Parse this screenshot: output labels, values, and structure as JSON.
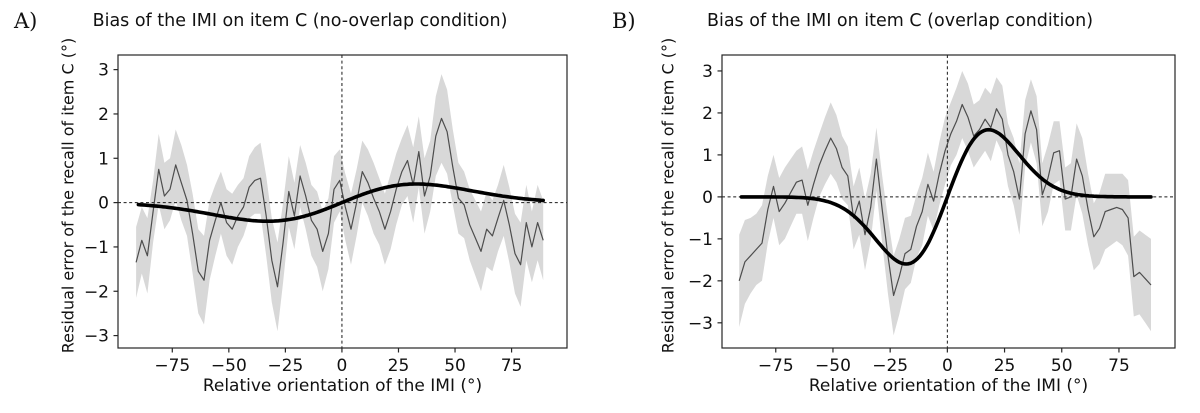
{
  "figure": {
    "background_color": "#ffffff",
    "description": "Two-panel line figure showing bias of the IMI on item C"
  },
  "chart_data": [
    {
      "type": "line",
      "panel_label": "A)",
      "title": "Bias of the IMI on item C (no-overlap condition)",
      "xlabel": "Relative orientation of the IMI (°)",
      "ylabel": "Residual error of the recall of item C (°)",
      "xlim": [
        -99,
        99.5
      ],
      "ylim": [
        -3.28,
        3.33
      ],
      "x_ticks": [
        -75,
        -50,
        -25,
        0,
        25,
        50,
        75
      ],
      "x_tick_labels": [
        "−75",
        "−50",
        "−25",
        "0",
        "25",
        "50",
        "75"
      ],
      "y_ticks": [
        3,
        2,
        1,
        0,
        -1,
        -2,
        -3
      ],
      "y_tick_labels": [
        "3",
        "2",
        "1",
        "0",
        "−1",
        "−2",
        "−3"
      ],
      "grid": false,
      "legend": null,
      "zero_reference_lines": {
        "horizontal_y": 0,
        "vertical_x": 0,
        "style": "dashed"
      },
      "series": [
        {
          "name": "mean residual error with error band",
          "style": "thin-noisy-line-with-band",
          "x_start": -91,
          "x_step": 2.5,
          "values": [
            -1.35,
            -0.85,
            -1.2,
            -0.2,
            0.75,
            0.15,
            0.3,
            0.85,
            0.45,
            0.05,
            -0.7,
            -1.55,
            -1.75,
            -0.85,
            -0.4,
            0.0,
            -0.45,
            -0.6,
            -0.3,
            -0.1,
            0.35,
            0.5,
            0.55,
            -0.3,
            -1.3,
            -1.9,
            -0.9,
            0.25,
            -0.3,
            0.6,
            0.15,
            -0.4,
            -0.6,
            -1.1,
            -0.7,
            0.3,
            0.5,
            -0.1,
            -0.6,
            0.0,
            0.7,
            0.45,
            0.1,
            -0.2,
            -0.6,
            -0.2,
            0.3,
            0.7,
            0.95,
            0.4,
            1.15,
            0.15,
            0.6,
            1.5,
            1.9,
            1.6,
            0.8,
            0.1,
            -0.05,
            -0.5,
            -0.8,
            -1.1,
            -0.6,
            -0.75,
            -0.35,
            0.05,
            -0.5,
            -1.15,
            -1.4,
            -0.45,
            -1.0,
            -0.45,
            -0.85
          ],
          "band_halfwidth": [
            0.8,
            0.75,
            0.85,
            0.7,
            0.8,
            0.75,
            0.7,
            0.8,
            0.85,
            0.8,
            0.9,
            0.95,
            1.0,
            0.9,
            0.8,
            0.7,
            0.75,
            0.8,
            0.7,
            0.65,
            0.7,
            0.75,
            0.8,
            0.9,
            0.95,
            1.0,
            0.9,
            0.8,
            0.75,
            0.7,
            0.75,
            0.8,
            0.85,
            0.9,
            0.8,
            0.75,
            0.7,
            0.75,
            0.8,
            0.75,
            0.7,
            0.75,
            0.8,
            0.75,
            0.8,
            0.85,
            0.8,
            0.75,
            0.8,
            0.85,
            0.8,
            0.85,
            0.8,
            0.9,
            1.0,
            0.95,
            0.85,
            0.8,
            0.75,
            0.8,
            0.85,
            0.9,
            0.85,
            0.8,
            0.75,
            0.8,
            0.85,
            0.9,
            0.95,
            0.85,
            0.8,
            0.85,
            0.9
          ]
        },
        {
          "name": "fitted bias curve (derivative-of-Gaussian)",
          "style": "thick-smooth-line",
          "fit": {
            "amplitude_deg": 0.42,
            "peak_x_deg": 33,
            "x_range": [
              -90,
              89
            ]
          }
        }
      ],
      "colors": {
        "band": "#d8d8d8",
        "mean_line": "#4d4d4d",
        "fit_line": "#000000",
        "reference_line": "#1a1a1a",
        "axis": "#262626",
        "text": "#111111"
      }
    },
    {
      "type": "line",
      "panel_label": "B)",
      "title": "Bias of the IMI on item C (overlap condition)",
      "xlabel": "Relative orientation of the IMI (°)",
      "ylabel": "Residual error of the recall of item C (°)",
      "xlim": [
        -98.5,
        99.5
      ],
      "ylim": [
        -3.6,
        3.38
      ],
      "x_ticks": [
        -75,
        -50,
        -25,
        0,
        25,
        50,
        75
      ],
      "x_tick_labels": [
        "−75",
        "−50",
        "−25",
        "0",
        "25",
        "50",
        "75"
      ],
      "y_ticks": [
        3,
        2,
        1,
        0,
        -1,
        -2,
        -3
      ],
      "y_tick_labels": [
        "3",
        "2",
        "1",
        "0",
        "−1",
        "−2",
        "−3"
      ],
      "grid": false,
      "legend": null,
      "zero_reference_lines": {
        "horizontal_y": 0,
        "vertical_x": 0,
        "style": "dashed"
      },
      "series": [
        {
          "name": "mean residual error with error band",
          "style": "thin-noisy-line-with-band",
          "x_start": -91,
          "x_step": 2.5,
          "values": [
            -2.0,
            -1.55,
            -1.4,
            -1.25,
            -1.1,
            -0.3,
            0.25,
            -0.35,
            -0.15,
            0.1,
            0.35,
            0.4,
            -0.2,
            0.3,
            0.75,
            1.1,
            1.4,
            1.15,
            0.7,
            0.5,
            -0.5,
            -0.1,
            -0.9,
            -0.25,
            0.9,
            -0.3,
            -1.4,
            -2.35,
            -1.9,
            -1.35,
            -1.25,
            -0.7,
            -0.35,
            0.3,
            -0.1,
            0.55,
            1.1,
            1.5,
            1.8,
            2.2,
            1.9,
            1.45,
            1.6,
            1.85,
            1.65,
            2.1,
            1.85,
            1.0,
            0.6,
            -0.05,
            1.5,
            2.05,
            1.6,
            0.05,
            0.45,
            1.05,
            1.1,
            -0.05,
            0.0,
            0.9,
            0.5,
            -0.3,
            -0.95,
            -0.75,
            -0.35,
            -0.3,
            -0.25,
            -0.3,
            -0.5,
            -1.9,
            -1.8,
            -1.95,
            -2.1
          ],
          "band_halfwidth": [
            1.1,
            1.0,
            0.9,
            0.85,
            0.9,
            0.8,
            0.75,
            0.8,
            0.85,
            0.8,
            0.75,
            0.8,
            0.85,
            0.8,
            0.75,
            0.8,
            0.85,
            0.8,
            0.75,
            0.7,
            0.75,
            0.8,
            0.85,
            0.8,
            0.75,
            0.8,
            0.9,
            0.95,
            0.9,
            0.85,
            0.8,
            0.75,
            0.8,
            0.75,
            0.7,
            0.75,
            0.8,
            0.75,
            0.8,
            0.8,
            0.8,
            0.75,
            0.7,
            0.75,
            0.8,
            0.75,
            0.8,
            0.75,
            0.8,
            0.85,
            0.8,
            0.75,
            0.8,
            0.75,
            0.8,
            0.75,
            0.7,
            0.75,
            0.8,
            0.85,
            0.9,
            0.85,
            0.8,
            0.85,
            0.9,
            0.85,
            0.8,
            0.85,
            0.9,
            0.95,
            1.0,
            1.05,
            1.1
          ]
        },
        {
          "name": "fitted bias curve (derivative-of-Gaussian)",
          "style": "thick-smooth-line",
          "fit": {
            "amplitude_deg": 1.6,
            "peak_x_deg": 18,
            "x_range": [
              -90,
              89
            ]
          }
        }
      ],
      "colors": {
        "band": "#d8d8d8",
        "mean_line": "#4d4d4d",
        "fit_line": "#000000",
        "reference_line": "#1a1a1a",
        "axis": "#262626",
        "text": "#111111"
      }
    }
  ]
}
